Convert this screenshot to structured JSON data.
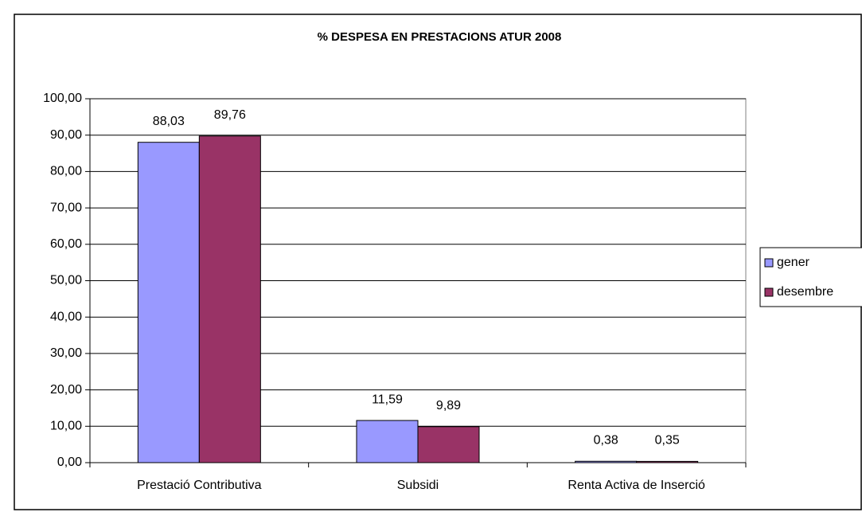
{
  "chart_data": {
    "type": "bar",
    "title": "% DESPESA EN PRESTACIONS ATUR 2008",
    "categories": [
      "Prestació Contributiva",
      "Subsidi",
      "Renta Activa de Inserció"
    ],
    "series": [
      {
        "name": "gener",
        "color": "#9999ff",
        "values": [
          88.03,
          11.59,
          0.38
        ],
        "value_labels": [
          "88,03",
          "11,59",
          "0,38"
        ]
      },
      {
        "name": "desembre",
        "color": "#993366",
        "values": [
          89.76,
          9.89,
          0.35
        ],
        "value_labels": [
          "89,76",
          "9,89",
          "0,35"
        ]
      }
    ],
    "ylim": [
      0,
      100
    ],
    "yticks": [
      {
        "value": 0,
        "label": "0,00"
      },
      {
        "value": 10,
        "label": "10,00"
      },
      {
        "value": 20,
        "label": "20,00"
      },
      {
        "value": 30,
        "label": "30,00"
      },
      {
        "value": 40,
        "label": "40,00"
      },
      {
        "value": 50,
        "label": "50,00"
      },
      {
        "value": 60,
        "label": "60,00"
      },
      {
        "value": 70,
        "label": "70,00"
      },
      {
        "value": 80,
        "label": "80,00"
      },
      {
        "value": 90,
        "label": "90,00"
      },
      {
        "value": 100,
        "label": "100,00"
      }
    ],
    "grid": true,
    "legend": "right"
  }
}
